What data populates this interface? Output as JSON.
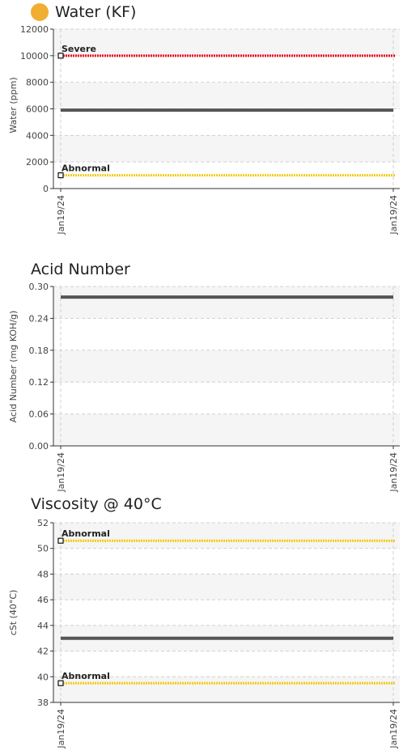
{
  "colors": {
    "status": "#f0ae33",
    "band": "#f5f5f5",
    "grid": "#d0d0d0",
    "data_line": "#555555",
    "severe": "#e8101f",
    "abnormal": "#f2cc16",
    "axis": "#333333"
  },
  "charts": [
    {
      "title": "Water (KF)",
      "status_icon": "status-dot-icon",
      "chart_data": {
        "type": "line",
        "title": "Water (KF)",
        "ylabel": "Water (ppm)",
        "xlabel": "",
        "ylim": [
          0,
          12000
        ],
        "yticks": [
          0,
          2000,
          4000,
          6000,
          8000,
          10000,
          12000
        ],
        "ytick_labels": [
          "0",
          "2000",
          "4000",
          "6000",
          "8000",
          "10000",
          "12000"
        ],
        "xtick_labels": [
          "Jan19/24",
          "Jan19/24"
        ],
        "grid": true,
        "series": [
          {
            "x": [
              "Jan19/24",
              "Jan19/24"
            ],
            "values": [
              5900,
              5900
            ]
          }
        ],
        "limits": [
          {
            "label": "Severe",
            "value": 10000,
            "level": "severe"
          },
          {
            "label": "Abnormal",
            "value": 1000,
            "level": "abnormal"
          }
        ]
      }
    },
    {
      "title": "Acid Number",
      "chart_data": {
        "type": "line",
        "title": "Acid Number",
        "ylabel": "Acid Number (mg KOH/g)",
        "xlabel": "",
        "ylim": [
          0,
          0.3
        ],
        "yticks": [
          0,
          0.06,
          0.12,
          0.18,
          0.24,
          0.3
        ],
        "ytick_labels": [
          "0.00",
          "0.06",
          "0.12",
          "0.18",
          "0.24",
          "0.30"
        ],
        "xtick_labels": [
          "Jan19/24",
          "Jan19/24"
        ],
        "grid": true,
        "series": [
          {
            "x": [
              "Jan19/24",
              "Jan19/24"
            ],
            "values": [
              0.28,
              0.28
            ]
          }
        ],
        "limits": []
      }
    },
    {
      "title": "Viscosity @ 40°C",
      "chart_data": {
        "type": "line",
        "title": "Viscosity @ 40°C",
        "ylabel": "cSt (40°C)",
        "xlabel": "",
        "ylim": [
          38,
          52
        ],
        "yticks": [
          38,
          40,
          42,
          44,
          46,
          48,
          50,
          52
        ],
        "ytick_labels": [
          "38",
          "40",
          "42",
          "44",
          "46",
          "48",
          "50",
          "52"
        ],
        "xtick_labels": [
          "Jan19/24",
          "Jan19/24"
        ],
        "grid": true,
        "series": [
          {
            "x": [
              "Jan19/24",
              "Jan19/24"
            ],
            "values": [
              43.0,
              43.0
            ]
          }
        ],
        "limits": [
          {
            "label": "Abnormal",
            "value": 50.6,
            "level": "abnormal"
          },
          {
            "label": "Abnormal",
            "value": 39.5,
            "level": "abnormal"
          }
        ]
      }
    }
  ]
}
